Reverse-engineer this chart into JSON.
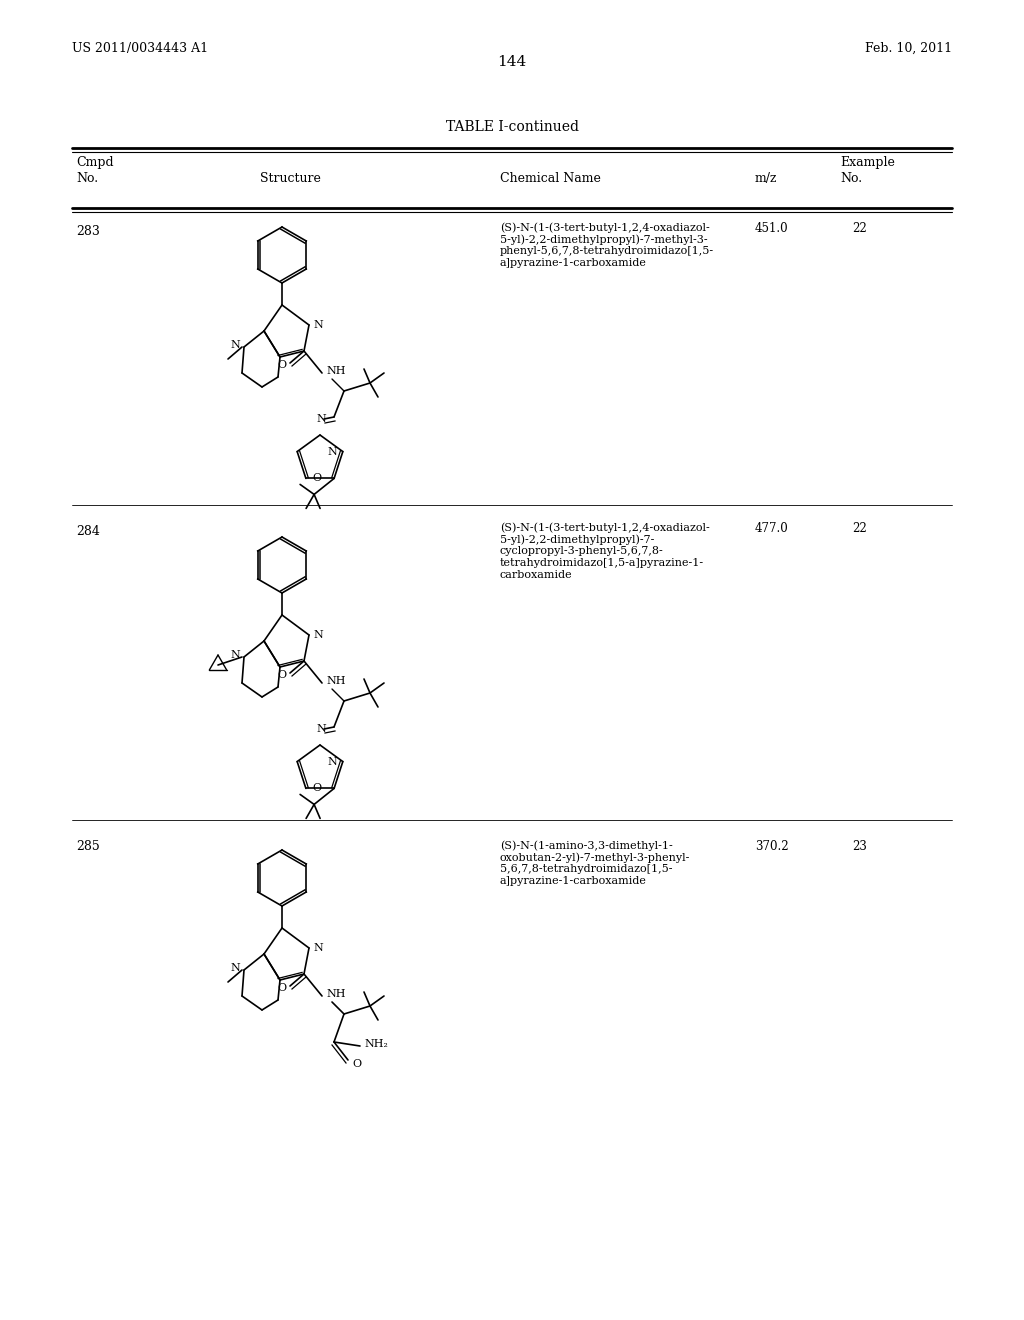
{
  "page_left": "US 2011/0034443 A1",
  "page_right": "Feb. 10, 2011",
  "page_number": "144",
  "table_title": "TABLE I-continued",
  "bg_color": "#ffffff",
  "text_color": "#000000",
  "font_size_page": 9,
  "font_size_header": 9,
  "font_size_body": 8.5,
  "font_size_chem": 7.5,
  "line_color": "#000000",
  "compounds": [
    {
      "number": "283",
      "chemical_name": "(S)-N-(1-(3-tert-butyl-1,2,4-oxadiazol-\n5-yl)-2,2-dimethylpropyl)-7-methyl-3-\nphenyl-5,6,7,8-tetrahydroimidazo[1,5-\na]pyrazine-1-carboxamide",
      "mz": "451.0",
      "example": "22"
    },
    {
      "number": "284",
      "chemical_name": "(S)-N-(1-(3-tert-butyl-1,2,4-oxadiazol-\n5-yl)-2,2-dimethylpropyl)-7-\ncyclopropyl-3-phenyl-5,6,7,8-\ntetrahydroimidazo[1,5-a]pyrazine-1-\ncarboxamide",
      "mz": "477.0",
      "example": "22"
    },
    {
      "number": "285",
      "chemical_name": "(S)-N-(1-amino-3,3-dimethyl-1-\noxobutan-2-yl)-7-methyl-3-phenyl-\n5,6,7,8-tetrahydroimidazo[1,5-\na]pyrazine-1-carboxamide",
      "mz": "370.2",
      "example": "23"
    }
  ]
}
